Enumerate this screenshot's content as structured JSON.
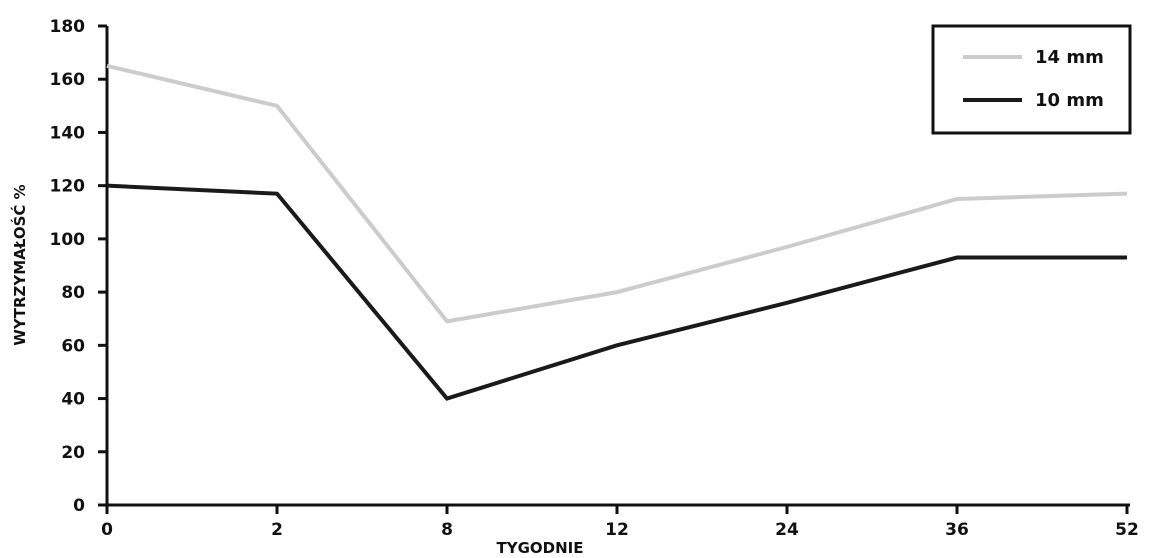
{
  "chart_data": {
    "type": "line",
    "categories": [
      "0",
      "2",
      "8",
      "12",
      "24",
      "36",
      "52"
    ],
    "series": [
      {
        "name": "14 mm",
        "values": [
          165,
          150,
          69,
          80,
          97,
          115,
          117
        ],
        "color": "#cccccc"
      },
      {
        "name": "10 mm",
        "values": [
          120,
          117,
          40,
          60,
          76,
          93,
          93
        ],
        "color": "#1a1a1a"
      }
    ],
    "y_ticks": [
      "0",
      "20",
      "40",
      "60",
      "80",
      "100",
      "120",
      "140",
      "160",
      "180"
    ],
    "xlabel": "TYGODNIE",
    "ylabel": "WYTRZYMAŁOŚĆ %",
    "ylim": [
      0,
      180
    ],
    "grid": false,
    "legend_position": "top-right"
  }
}
